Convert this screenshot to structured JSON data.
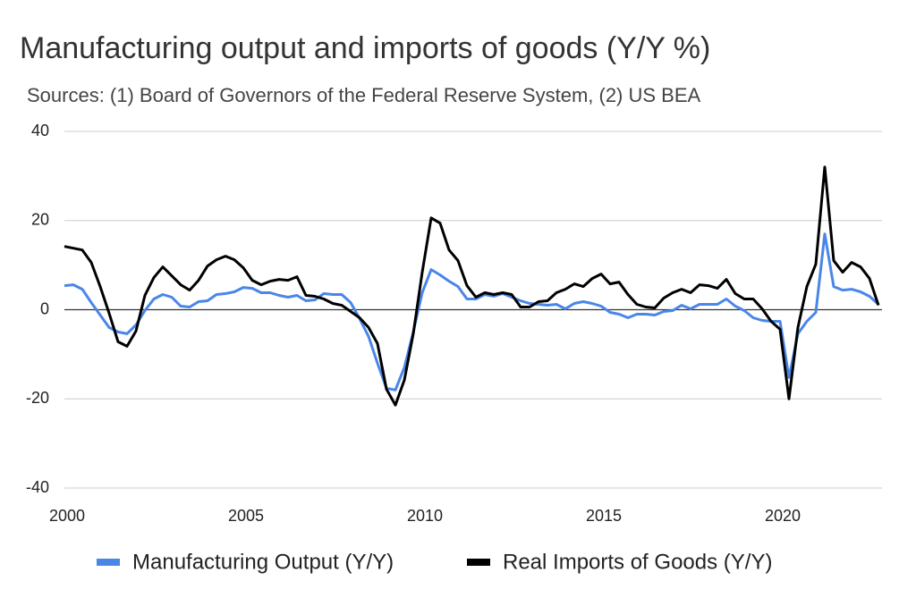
{
  "chart_data": {
    "type": "line",
    "title": "Manufacturing output and imports of goods (Y/Y %)",
    "subtitle": "Sources: (1) Board of Governors of the Federal Reserve System, (2) US BEA",
    "x": [
      2000,
      2000.25,
      2000.5,
      2000.75,
      2001,
      2001.25,
      2001.5,
      2001.75,
      2002,
      2002.25,
      2002.5,
      2002.75,
      2003,
      2003.25,
      2003.5,
      2003.75,
      2004,
      2004.25,
      2004.5,
      2004.75,
      2005,
      2005.25,
      2005.5,
      2005.75,
      2006,
      2006.25,
      2006.5,
      2006.75,
      2007,
      2007.25,
      2007.5,
      2007.75,
      2008,
      2008.25,
      2008.5,
      2008.75,
      2009,
      2009.25,
      2009.5,
      2009.75,
      2010,
      2010.25,
      2010.5,
      2010.75,
      2011,
      2011.25,
      2011.5,
      2011.75,
      2012,
      2012.25,
      2012.5,
      2012.75,
      2013,
      2013.25,
      2013.5,
      2013.75,
      2014,
      2014.25,
      2014.5,
      2014.75,
      2015,
      2015.25,
      2015.5,
      2015.75,
      2016,
      2016.25,
      2016.5,
      2016.75,
      2017,
      2017.25,
      2017.5,
      2017.75,
      2018,
      2018.25,
      2018.5,
      2018.75,
      2019,
      2019.25,
      2019.5,
      2019.75,
      2020,
      2020.25,
      2020.5,
      2020.75,
      2021,
      2021.25,
      2021.5,
      2021.75,
      2022,
      2022.25,
      2022.5,
      2022.75
    ],
    "series": [
      {
        "name": "Manufacturing Output (Y/Y)",
        "color": "#4a86e8",
        "values": [
          5.4,
          5.6,
          4.6,
          1.6,
          -1.2,
          -4,
          -5,
          -5.4,
          -3.4,
          -0.2,
          2.4,
          3.4,
          2.8,
          0.8,
          0.6,
          1.8,
          2,
          3.4,
          3.6,
          4,
          5,
          4.8,
          3.8,
          3.8,
          3.2,
          2.8,
          3.2,
          2,
          2.2,
          3.6,
          3.4,
          3.4,
          1.6,
          -2,
          -6,
          -12,
          -17.6,
          -18,
          -13,
          -5,
          3.8,
          9,
          7.8,
          6.4,
          5.2,
          2.4,
          2.4,
          3.4,
          3,
          3.6,
          2.8,
          2,
          1.4,
          1.2,
          1,
          1.2,
          0.2,
          1.4,
          1.8,
          1.4,
          0.8,
          -0.6,
          -1,
          -1.8,
          -1,
          -1,
          -1.2,
          -0.4,
          -0.2,
          1,
          0.2,
          1.2,
          1.2,
          1.2,
          2.4,
          0.8,
          -0.2,
          -1.8,
          -2.4,
          -2.6,
          -2.6,
          -15.2,
          -5.4,
          -2.6,
          -0.6,
          17,
          5.2,
          4.4,
          4.6,
          4,
          3,
          1.2
        ]
      },
      {
        "name": "Real Imports of Goods (Y/Y)",
        "color": "#000000",
        "values": [
          14.2,
          13.8,
          13.4,
          10.6,
          5.2,
          -0.8,
          -7.2,
          -8.2,
          -4.8,
          3.2,
          7.2,
          9.6,
          7.6,
          5.6,
          4.4,
          6.6,
          9.8,
          11.2,
          12,
          11.2,
          9.4,
          6.6,
          5.6,
          6.4,
          6.8,
          6.6,
          7.4,
          3.2,
          3,
          2.4,
          1.4,
          1,
          -0.4,
          -1.8,
          -4,
          -7.6,
          -17.8,
          -21.4,
          -15.8,
          -5.4,
          8.4,
          20.6,
          19.4,
          13.4,
          11,
          5.4,
          2.8,
          3.8,
          3.4,
          3.8,
          3.4,
          0.6,
          0.6,
          1.8,
          2,
          3.8,
          4.6,
          5.8,
          5.2,
          7,
          8,
          5.8,
          6.2,
          3.4,
          1.2,
          0.6,
          0.4,
          2.6,
          3.8,
          4.6,
          3.8,
          5.6,
          5.4,
          4.8,
          6.8,
          3.6,
          2.4,
          2.4,
          0.2,
          -2.6,
          -4.4,
          -20,
          -4,
          5.2,
          10.2,
          32,
          11,
          8.4,
          10.6,
          9.6,
          7,
          1
        ]
      }
    ],
    "xlim": [
      2000,
      2022.75
    ],
    "xticks": [
      2000,
      2005,
      2010,
      2015,
      2020
    ],
    "ylim": [
      -40,
      40
    ],
    "yticks": [
      -40,
      -20,
      0,
      20,
      40
    ],
    "grid": true,
    "legend": "bottom"
  }
}
